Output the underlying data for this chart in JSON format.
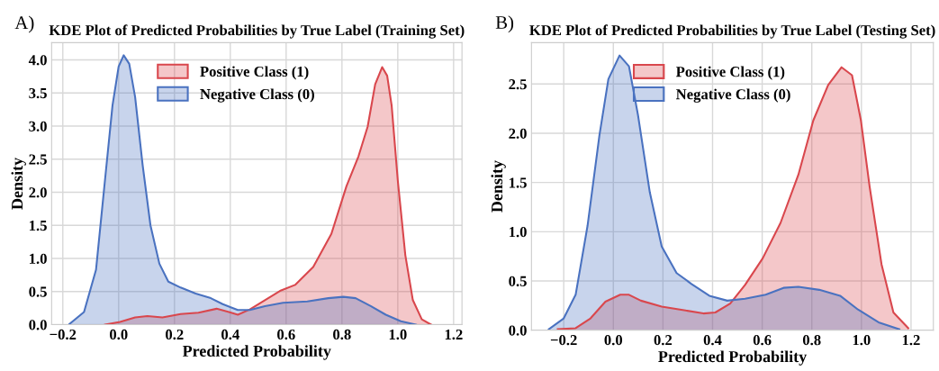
{
  "chart_data": [
    {
      "type": "area",
      "title": "KDE Plot of Predicted Probabilities by True Label (Training Set)",
      "xlabel": "Predicted Probability",
      "ylabel": "Density",
      "annotations": [
        "A)"
      ],
      "xlim": [
        -0.24,
        1.23
      ],
      "ylim": [
        0,
        4.26
      ],
      "xticks": [
        {
          "value": -0.2,
          "label": "−0.2"
        },
        {
          "value": 0,
          "label": "0.0"
        },
        {
          "value": 0.2,
          "label": "0.2"
        },
        {
          "value": 0.4,
          "label": "0.4"
        },
        {
          "value": 0.6,
          "label": "0.6"
        },
        {
          "value": 0.8,
          "label": "0.8"
        },
        {
          "value": 1.0,
          "label": "1.0"
        },
        {
          "value": 1.2,
          "label": "1.2"
        }
      ],
      "yticks": [
        {
          "value": 0,
          "label": "0.0"
        },
        {
          "value": 0.5,
          "label": "0.5"
        },
        {
          "value": 1.0,
          "label": "1.0"
        },
        {
          "value": 1.5,
          "label": "1.5"
        },
        {
          "value": 2.0,
          "label": "2.0"
        },
        {
          "value": 2.5,
          "label": "2.5"
        },
        {
          "value": 3.0,
          "label": "3.0"
        },
        {
          "value": 3.5,
          "label": "3.5"
        },
        {
          "value": 4.0,
          "label": "4.0"
        }
      ],
      "grid": true,
      "legend": "top",
      "series": [
        {
          "name": "Positive Class (1)",
          "color": "#d9474d",
          "x": [
            -0.049,
            0.005,
            0.059,
            0.103,
            0.157,
            0.222,
            0.286,
            0.351,
            0.395,
            0.427,
            0.47,
            0.524,
            0.578,
            0.632,
            0.697,
            0.762,
            0.816,
            0.859,
            0.892,
            0.919,
            0.944,
            0.962,
            0.978,
            1.0,
            1.027,
            1.054,
            1.086,
            1.119
          ],
          "values": [
            0.0,
            0.04,
            0.11,
            0.13,
            0.11,
            0.16,
            0.18,
            0.24,
            0.19,
            0.15,
            0.23,
            0.37,
            0.51,
            0.6,
            0.87,
            1.37,
            2.09,
            2.54,
            2.99,
            3.63,
            3.89,
            3.76,
            3.31,
            2.18,
            1.05,
            0.37,
            0.08,
            0.0
          ]
        },
        {
          "name": "Negative Class (0)",
          "color": "#4a72c0",
          "x": [
            -0.176,
            -0.124,
            -0.081,
            -0.049,
            -0.022,
            0.0,
            0.018,
            0.038,
            0.059,
            0.086,
            0.114,
            0.146,
            0.178,
            0.222,
            0.276,
            0.33,
            0.373,
            0.427,
            0.47,
            0.524,
            0.589,
            0.676,
            0.751,
            0.805,
            0.849,
            0.903,
            0.957,
            1.011,
            1.065
          ],
          "values": [
            0.01,
            0.19,
            0.83,
            2.18,
            3.31,
            3.9,
            4.07,
            3.94,
            3.44,
            2.41,
            1.5,
            0.92,
            0.65,
            0.56,
            0.47,
            0.4,
            0.31,
            0.22,
            0.22,
            0.28,
            0.33,
            0.35,
            0.4,
            0.42,
            0.4,
            0.28,
            0.15,
            0.05,
            0.0
          ]
        }
      ]
    },
    {
      "type": "area",
      "title": "KDE Plot of Predicted Probabilities by True Label (Testing Set)",
      "xlabel": "Predicted Probability",
      "ylabel": "Density",
      "annotations": [
        "B)"
      ],
      "xlim": [
        -0.33,
        1.29
      ],
      "ylim": [
        0,
        2.92
      ],
      "xticks": [
        {
          "value": -0.2,
          "label": "−0.2"
        },
        {
          "value": 0,
          "label": "0.0"
        },
        {
          "value": 0.2,
          "label": "0.2"
        },
        {
          "value": 0.4,
          "label": "0.4"
        },
        {
          "value": 0.6,
          "label": "0.6"
        },
        {
          "value": 0.8,
          "label": "0.8"
        },
        {
          "value": 1.0,
          "label": "1.0"
        },
        {
          "value": 1.2,
          "label": "1.2"
        }
      ],
      "yticks": [
        {
          "value": 0,
          "label": "0.0"
        },
        {
          "value": 0.5,
          "label": "0.5"
        },
        {
          "value": 1.0,
          "label": "1.0"
        },
        {
          "value": 1.5,
          "label": "1.5"
        },
        {
          "value": 2.0,
          "label": "2.0"
        },
        {
          "value": 2.5,
          "label": "2.5"
        }
      ],
      "grid": true,
      "legend": "top",
      "series": [
        {
          "name": "Positive Class (1)",
          "color": "#d9474d",
          "x": [
            -0.224,
            -0.152,
            -0.092,
            -0.032,
            0.028,
            0.063,
            0.111,
            0.195,
            0.291,
            0.363,
            0.411,
            0.471,
            0.531,
            0.602,
            0.674,
            0.746,
            0.806,
            0.866,
            0.92,
            0.962,
            0.998,
            1.033,
            1.081,
            1.129,
            1.189
          ],
          "values": [
            0.01,
            0.02,
            0.12,
            0.29,
            0.36,
            0.36,
            0.3,
            0.24,
            0.2,
            0.17,
            0.18,
            0.27,
            0.46,
            0.73,
            1.09,
            1.58,
            2.13,
            2.49,
            2.67,
            2.59,
            2.13,
            1.46,
            0.67,
            0.18,
            0.02
          ]
        },
        {
          "name": "Negative Class (0)",
          "color": "#4a72c0",
          "x": [
            -0.26,
            -0.2,
            -0.152,
            -0.104,
            -0.056,
            -0.02,
            0.025,
            0.063,
            0.099,
            0.147,
            0.195,
            0.255,
            0.315,
            0.387,
            0.459,
            0.531,
            0.614,
            0.686,
            0.746,
            0.83,
            0.914,
            0.986,
            1.069,
            1.153
          ],
          "values": [
            0.01,
            0.12,
            0.36,
            1.06,
            1.98,
            2.55,
            2.79,
            2.68,
            2.19,
            1.4,
            0.85,
            0.58,
            0.47,
            0.35,
            0.3,
            0.32,
            0.36,
            0.43,
            0.44,
            0.41,
            0.35,
            0.21,
            0.08,
            0.01
          ]
        }
      ]
    }
  ]
}
